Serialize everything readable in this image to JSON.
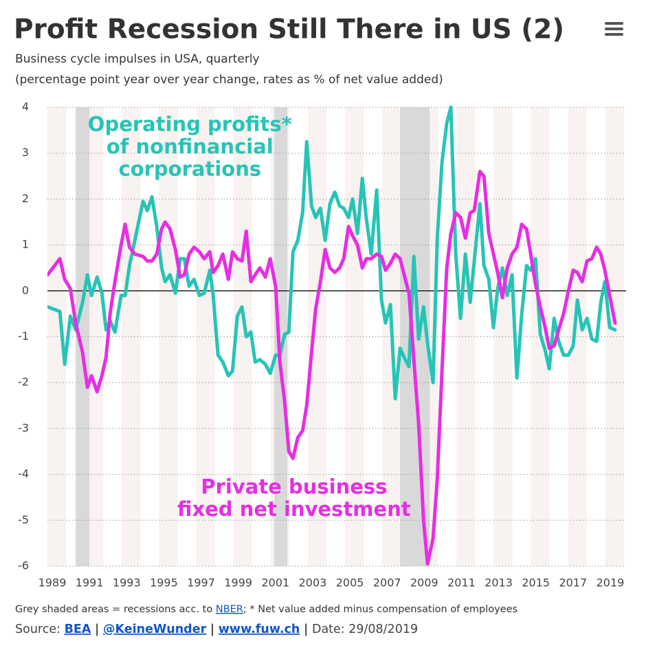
{
  "chart_data": {
    "type": "line",
    "title": "Profit Recession Still There in US (2)",
    "subtitle": [
      "Business cycle impulses in USA, quarterly",
      "(percentage point year over year change, rates as % of net value added)"
    ],
    "x": [
      1988.75,
      1989.41,
      1989.67,
      1989.97,
      1990.26,
      1990.63,
      1990.89,
      1991.11,
      1991.41,
      1991.67,
      1991.89,
      1992.11,
      1992.37,
      1992.7,
      1992.92,
      1993.15,
      1993.44,
      1993.88,
      1994.11,
      1994.36,
      1994.62,
      1994.88,
      1995.07,
      1995.33,
      1995.62,
      1995.88,
      1996.1,
      1996.36,
      1996.62,
      1996.91,
      1997.17,
      1997.47,
      1997.65,
      1997.91,
      1998.17,
      1998.47,
      1998.69,
      1998.95,
      1999.2,
      1999.43,
      1999.68,
      1999.91,
      2000.16,
      2000.46,
      2000.72,
      2001.01,
      2001.24,
      2001.49,
      2001.72,
      2001.94,
      2002.2,
      2002.46,
      2002.68,
      2002.94,
      2003.16,
      2003.42,
      2003.67,
      2003.93,
      2004.19,
      2004.45,
      2004.67,
      2004.93,
      2005.15,
      2005.41,
      2005.67,
      2005.89,
      2006.15,
      2006.44,
      2006.7,
      2006.92,
      2007.18,
      2007.44,
      2007.7,
      2007.92,
      2008.18,
      2008.44,
      2008.7,
      2008.96,
      2009.18,
      2009.47,
      2009.7,
      2009.95,
      2010.21,
      2010.43,
      2010.69,
      2010.95,
      2011.21,
      2011.47,
      2011.69,
      2011.99,
      2012.21,
      2012.47,
      2012.72,
      2012.95,
      2013.2,
      2013.46,
      2013.72,
      2013.98,
      2014.24,
      2014.5,
      2014.72,
      2014.98,
      2015.24,
      2015.5,
      2015.72,
      2015.98,
      2016.23,
      2016.49,
      2016.75,
      2017.01,
      2017.23,
      2017.49,
      2017.75,
      2018.01,
      2018.27,
      2018.49,
      2018.71,
      2018.97,
      2019.26
    ],
    "series": [
      {
        "name": "Operating profits*",
        "color": "#27c4b6",
        "values": [
          -0.35,
          -0.45,
          -1.6,
          -0.55,
          -0.85,
          -0.25,
          0.35,
          -0.1,
          0.3,
          -0.05,
          -0.85,
          -0.65,
          -0.9,
          -0.1,
          -0.1,
          0.55,
          1.1,
          1.95,
          1.75,
          2.05,
          1.4,
          0.5,
          0.2,
          0.35,
          -0.05,
          0.7,
          0.7,
          0.1,
          0.25,
          -0.1,
          -0.05,
          0.45,
          -0.1,
          -1.4,
          -1.55,
          -1.85,
          -1.75,
          -0.55,
          -0.35,
          -1.0,
          -0.9,
          -1.55,
          -1.5,
          -1.6,
          -1.8,
          -1.4,
          -1.4,
          -0.95,
          -0.9,
          0.85,
          1.1,
          1.7,
          3.25,
          1.85,
          1.6,
          1.8,
          1.1,
          1.9,
          2.15,
          1.85,
          1.8,
          1.6,
          2.0,
          1.25,
          2.45,
          1.55,
          0.8,
          2.2,
          -0.2,
          -0.7,
          -0.3,
          -2.35,
          -1.25,
          -1.45,
          -1.65,
          0.75,
          -1.05,
          -0.35,
          -1.15,
          -2.0,
          1.15,
          2.8,
          3.65,
          4.0,
          0.8,
          -0.6,
          0.8,
          -0.25,
          0.65,
          1.9,
          0.55,
          0.25,
          -0.8,
          0.05,
          0.5,
          -0.1,
          0.35,
          -1.9,
          -0.5,
          0.55,
          0.45,
          0.7,
          -0.95,
          -1.3,
          -1.7,
          -0.6,
          -1.1,
          -1.4,
          -1.4,
          -1.2,
          -0.2,
          -0.85,
          -0.6,
          -1.05,
          -1.1,
          -0.25,
          0.2,
          -0.8,
          -0.85
        ]
      },
      {
        "name": "Private business fixed net investment",
        "color": "#e62ee2",
        "values": [
          0.35,
          0.7,
          0.25,
          0.05,
          -0.7,
          -1.35,
          -2.1,
          -1.85,
          -2.2,
          -1.85,
          -1.45,
          -0.5,
          0.2,
          1.0,
          1.45,
          0.95,
          0.8,
          0.75,
          0.65,
          0.65,
          0.8,
          1.35,
          1.5,
          1.35,
          0.9,
          0.3,
          0.35,
          0.8,
          0.95,
          0.85,
          0.7,
          0.85,
          0.4,
          0.55,
          0.8,
          0.25,
          0.85,
          0.7,
          0.65,
          1.3,
          0.2,
          0.35,
          0.5,
          0.3,
          0.7,
          0.1,
          -1.55,
          -2.4,
          -3.5,
          -3.65,
          -3.2,
          -3.05,
          -2.5,
          -1.35,
          -0.4,
          0.2,
          0.9,
          0.5,
          0.4,
          0.5,
          0.7,
          1.4,
          1.2,
          1.0,
          0.5,
          0.7,
          0.7,
          0.8,
          0.75,
          0.45,
          0.6,
          0.8,
          0.7,
          0.35,
          -0.05,
          -1.5,
          -2.9,
          -5.0,
          -5.95,
          -5.4,
          -4.1,
          -1.75,
          0.5,
          1.25,
          1.7,
          1.6,
          1.15,
          1.7,
          1.75,
          2.6,
          2.5,
          1.25,
          0.8,
          0.4,
          -0.15,
          0.5,
          0.8,
          0.95,
          1.45,
          1.35,
          0.8,
          0.15,
          -0.35,
          -0.8,
          -1.25,
          -1.2,
          -0.85,
          -0.5,
          0.0,
          0.45,
          0.4,
          0.2,
          0.65,
          0.7,
          0.95,
          0.8,
          0.45,
          -0.1,
          -0.7
        ]
      }
    ],
    "annotations": [
      {
        "lines": [
          "Operating profits*",
          "of nonfinancial",
          "corporations"
        ],
        "color": "#27c4b6",
        "x": 1996.4,
        "y": 3.6
      },
      {
        "lines": [
          "Private business",
          "fixed net investment"
        ],
        "color": "#e62ee2",
        "x": 2002.0,
        "y": -4.3
      }
    ],
    "recessions": [
      [
        1990.26,
        1991.0
      ],
      [
        2000.94,
        2001.64
      ],
      [
        2007.7,
        2009.29
      ]
    ],
    "recession_color": "#d9d9d9",
    "xlim": [
      1988.74,
      2019.85
    ],
    "xticks": [
      1989,
      1991,
      1993,
      1995,
      1997,
      1999,
      2001,
      2003,
      2005,
      2007,
      2009,
      2011,
      2013,
      2015,
      2017,
      2019
    ],
    "ylim": [
      -6,
      4
    ],
    "yticks": [
      -6,
      -5,
      -4,
      -3,
      -2,
      -1,
      0,
      1,
      2,
      3,
      4
    ],
    "grid": true,
    "note": {
      "before": "Grey shaded areas = recessions acc. to ",
      "link": "NBER",
      "after": "; * Net value added minus compensation of employees"
    },
    "source": {
      "label": "Source:",
      "links": [
        "BEA",
        "@KeineWunder",
        "www.fuw.ch"
      ],
      "separator": "|",
      "date": "Date: 29/08/2019"
    }
  }
}
